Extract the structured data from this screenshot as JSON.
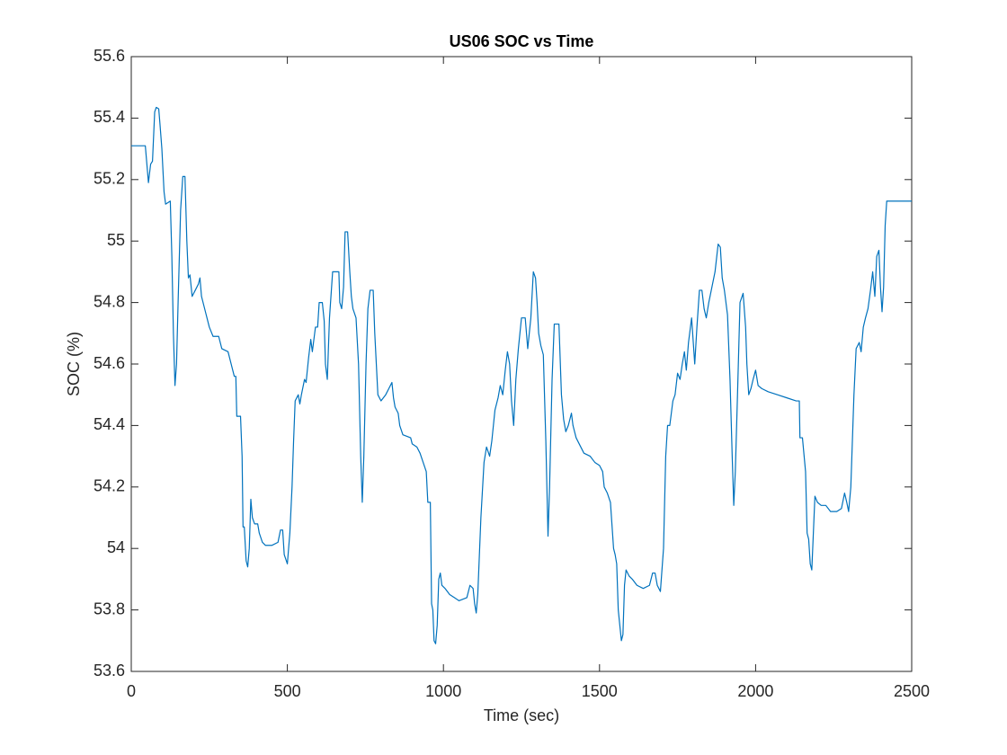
{
  "chart_data": {
    "type": "line",
    "title": "US06 SOC vs Time",
    "xlabel": "Time (sec)",
    "ylabel": "SOC (%)",
    "xlim": [
      0,
      2500
    ],
    "xticks": [
      0,
      500,
      1000,
      1500,
      2000,
      2500
    ],
    "ylim": [
      53.6,
      55.6
    ],
    "yticks": [
      53.6,
      53.8,
      54,
      54.2,
      54.4,
      54.6,
      54.8,
      55,
      55.2,
      55.4,
      55.6
    ],
    "grid": false,
    "series": [
      {
        "color": "#0072bd",
        "x": [
          0,
          45,
          50,
          55,
          62,
          68,
          75,
          80,
          88,
          92,
          98,
          105,
          110,
          125,
          130,
          135,
          140,
          145,
          150,
          158,
          165,
          172,
          178,
          183,
          188,
          195,
          205,
          215,
          220,
          225,
          240,
          250,
          262,
          280,
          290,
          310,
          320,
          330,
          335,
          338,
          350,
          355,
          358,
          362,
          368,
          373,
          378,
          383,
          388,
          395,
          405,
          410,
          420,
          430,
          450,
          470,
          478,
          485,
          490,
          500,
          508,
          515,
          520,
          525,
          535,
          540,
          545,
          555,
          560,
          568,
          575,
          580,
          590,
          597,
          602,
          612,
          618,
          622,
          628,
          635,
          645,
          655,
          665,
          668,
          674,
          680,
          685,
          693,
          700,
          705,
          710,
          720,
          728,
          735,
          740,
          745,
          752,
          758,
          765,
          775,
          780,
          785,
          790,
          800,
          815,
          825,
          835,
          840,
          845,
          855,
          860,
          870,
          895,
          900,
          915,
          925,
          935,
          945,
          950,
          958,
          962,
          966,
          970,
          975,
          980,
          985,
          990,
          995,
          1005,
          1020,
          1035,
          1050,
          1075,
          1085,
          1095,
          1100,
          1105,
          1110,
          1120,
          1130,
          1138,
          1148,
          1155,
          1165,
          1175,
          1182,
          1190,
          1198,
          1205,
          1212,
          1218,
          1225,
          1232,
          1240,
          1250,
          1262,
          1270,
          1280,
          1288,
          1295,
          1300,
          1305,
          1312,
          1320,
          1328,
          1335,
          1340,
          1348,
          1355,
          1370,
          1378,
          1385,
          1392,
          1400,
          1410,
          1415,
          1425,
          1435,
          1450,
          1470,
          1485,
          1500,
          1510,
          1515,
          1525,
          1535,
          1545,
          1550,
          1555,
          1560,
          1565,
          1570,
          1575,
          1580,
          1585,
          1595,
          1605,
          1620,
          1640,
          1660,
          1670,
          1678,
          1685,
          1695,
          1705,
          1712,
          1718,
          1725,
          1735,
          1742,
          1750,
          1758,
          1765,
          1772,
          1778,
          1785,
          1795,
          1805,
          1812,
          1820,
          1828,
          1835,
          1842,
          1850,
          1860,
          1870,
          1880,
          1887,
          1893,
          1900,
          1910,
          1918,
          1925,
          1930,
          1935,
          1942,
          1950,
          1960,
          1968,
          1972,
          1978,
          1985,
          1992,
          2000,
          2008,
          2020,
          2040,
          2070,
          2100,
          2130,
          2140,
          2142,
          2150,
          2160,
          2165,
          2170,
          2175,
          2180,
          2185,
          2190,
          2198,
          2210,
          2225,
          2240,
          2260,
          2275,
          2285,
          2292,
          2298,
          2305,
          2315,
          2322,
          2332,
          2338,
          2345,
          2352,
          2360,
          2368,
          2375,
          2382,
          2388,
          2395,
          2400,
          2405,
          2410,
          2415,
          2420,
          2500
        ],
        "values": [
          55.31,
          55.31,
          55.25,
          55.19,
          55.25,
          55.26,
          55.42,
          55.435,
          55.43,
          55.38,
          55.3,
          55.16,
          55.12,
          55.13,
          54.95,
          54.7,
          54.53,
          54.6,
          54.8,
          55.1,
          55.21,
          55.21,
          55.0,
          54.88,
          54.89,
          54.82,
          54.84,
          54.86,
          54.88,
          54.82,
          54.76,
          54.72,
          54.69,
          54.69,
          54.65,
          54.64,
          54.6,
          54.56,
          54.56,
          54.43,
          54.43,
          54.3,
          54.07,
          54.07,
          53.96,
          53.94,
          54.0,
          54.16,
          54.1,
          54.08,
          54.08,
          54.05,
          54.02,
          54.01,
          54.01,
          54.02,
          54.06,
          54.06,
          53.98,
          53.95,
          54.05,
          54.2,
          54.35,
          54.48,
          54.5,
          54.47,
          54.5,
          54.55,
          54.54,
          54.62,
          54.68,
          54.64,
          54.72,
          54.72,
          54.8,
          54.8,
          54.74,
          54.6,
          54.55,
          54.75,
          54.9,
          54.9,
          54.9,
          54.8,
          54.78,
          54.85,
          55.03,
          55.03,
          54.9,
          54.82,
          54.78,
          54.75,
          54.6,
          54.3,
          54.15,
          54.3,
          54.6,
          54.78,
          54.84,
          54.84,
          54.7,
          54.6,
          54.5,
          54.48,
          54.5,
          54.52,
          54.54,
          54.49,
          54.46,
          54.44,
          54.4,
          54.37,
          54.36,
          54.34,
          54.33,
          54.31,
          54.28,
          54.25,
          54.15,
          54.15,
          53.82,
          53.8,
          53.7,
          53.69,
          53.75,
          53.9,
          53.92,
          53.88,
          53.87,
          53.85,
          53.84,
          53.83,
          53.84,
          53.88,
          53.87,
          53.82,
          53.79,
          53.85,
          54.1,
          54.28,
          54.33,
          54.3,
          54.35,
          54.45,
          54.49,
          54.53,
          54.5,
          54.58,
          54.64,
          54.6,
          54.48,
          54.4,
          54.55,
          54.65,
          54.75,
          54.75,
          54.65,
          54.75,
          54.9,
          54.88,
          54.8,
          54.7,
          54.66,
          54.63,
          54.35,
          54.04,
          54.2,
          54.55,
          54.73,
          54.73,
          54.5,
          54.42,
          54.38,
          54.4,
          54.44,
          54.4,
          54.36,
          54.34,
          54.31,
          54.3,
          54.28,
          54.27,
          54.25,
          54.2,
          54.18,
          54.15,
          54.0,
          53.98,
          53.95,
          53.8,
          53.75,
          53.7,
          53.72,
          53.88,
          53.93,
          53.91,
          53.9,
          53.88,
          53.87,
          53.88,
          53.92,
          53.92,
          53.88,
          53.86,
          54.0,
          54.3,
          54.4,
          54.4,
          54.48,
          54.5,
          54.57,
          54.55,
          54.6,
          54.64,
          54.58,
          54.67,
          54.75,
          54.6,
          54.72,
          54.84,
          54.84,
          54.78,
          54.75,
          54.8,
          54.85,
          54.9,
          54.99,
          54.98,
          54.88,
          54.84,
          54.76,
          54.55,
          54.3,
          54.14,
          54.25,
          54.5,
          54.8,
          54.83,
          54.72,
          54.6,
          54.5,
          54.52,
          54.55,
          54.58,
          54.53,
          54.52,
          54.51,
          54.5,
          54.49,
          54.48,
          54.48,
          54.36,
          54.36,
          54.25,
          54.05,
          54.03,
          53.95,
          53.93,
          54.05,
          54.17,
          54.15,
          54.14,
          54.14,
          54.12,
          54.12,
          54.13,
          54.18,
          54.15,
          54.12,
          54.2,
          54.5,
          54.65,
          54.67,
          54.64,
          54.72,
          54.75,
          54.78,
          54.84,
          54.9,
          54.82,
          54.95,
          54.97,
          54.85,
          54.77,
          54.85,
          55.05,
          55.13,
          55.13
        ]
      }
    ]
  }
}
